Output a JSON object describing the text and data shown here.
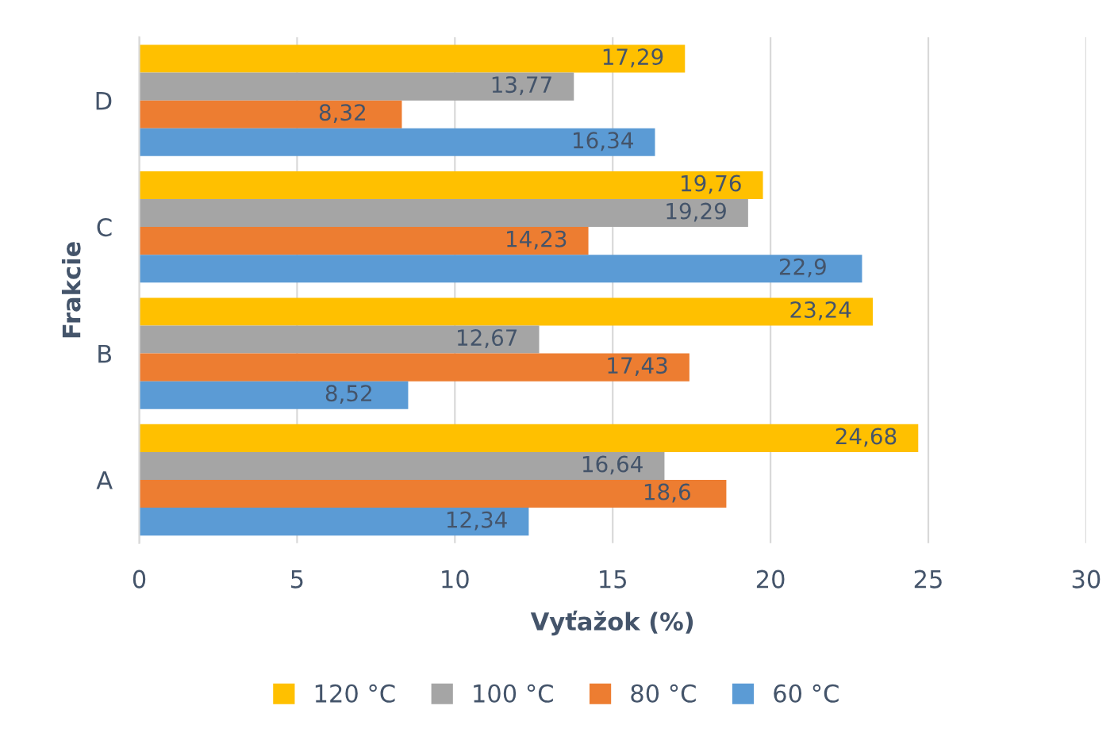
{
  "chart_data": {
    "type": "bar",
    "orientation": "horizontal",
    "xlabel": "Vyťažok (%)",
    "ylabel": "Frakcie",
    "categories": [
      "D",
      "C",
      "B",
      "A"
    ],
    "series": [
      {
        "name": "120 °C",
        "color": "#ffc000",
        "values": [
          17.29,
          19.76,
          23.24,
          24.68
        ],
        "value_labels": [
          "17,29",
          "19,76",
          "23,24",
          "24,68"
        ]
      },
      {
        "name": "100 °C",
        "color": "#a5a5a5",
        "values": [
          13.77,
          19.29,
          12.67,
          16.64
        ],
        "value_labels": [
          "13,77",
          "19,29",
          "12,67",
          "16,64"
        ]
      },
      {
        "name": "80 °C",
        "color": "#ed7d31",
        "values": [
          8.32,
          14.23,
          17.43,
          18.6
        ],
        "value_labels": [
          "8,32",
          "14,23",
          "17,43",
          "18,6"
        ]
      },
      {
        "name": "60 °C",
        "color": "#5b9bd5",
        "values": [
          16.34,
          22.9,
          8.52,
          12.34
        ],
        "value_labels": [
          "16,34",
          "22,9",
          "8,52",
          "12,34"
        ]
      }
    ],
    "xlim": [
      0,
      30
    ],
    "xticks": [
      0,
      5,
      10,
      15,
      20,
      25,
      30
    ],
    "grid": "x",
    "legend": "bottom"
  }
}
